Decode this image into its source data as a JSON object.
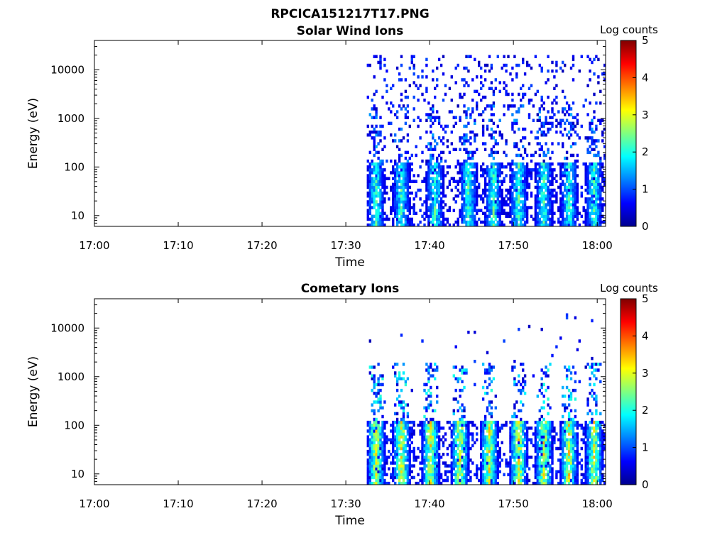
{
  "figure_title": "RPCICA151217T17.PNG",
  "colormap": [
    "#00008f",
    "#0000ff",
    "#0080ff",
    "#00ffff",
    "#80ff80",
    "#ffff00",
    "#ff8000",
    "#ff0000",
    "#800000"
  ],
  "chart_data": [
    {
      "type": "heatmap",
      "title": "Solar Wind Ions",
      "xlabel": "Time",
      "ylabel": "Energy (eV)",
      "x_ticks": [
        "17:00",
        "17:10",
        "17:20",
        "17:30",
        "17:40",
        "17:50",
        "18:00"
      ],
      "x_tick_values_min": [
        0,
        10,
        20,
        30,
        40,
        50,
        60
      ],
      "xlim_min": [
        0,
        61
      ],
      "y_scale": "log",
      "y_ticks": [
        "10",
        "100",
        "1000",
        "10000"
      ],
      "y_tick_values": [
        10,
        100,
        1000,
        10000
      ],
      "ylim": [
        6,
        40000
      ],
      "colorbar": {
        "label": "Log counts",
        "ticks": [
          "0",
          "1",
          "2",
          "3",
          "4",
          "5"
        ],
        "range": [
          0,
          5
        ]
      },
      "data_start_min": 32.5,
      "data_end_min": 61,
      "low_energy_bursts_min": [
        33.5,
        36.5,
        40.5,
        44.5,
        47.5,
        50.5,
        53.5,
        56.5,
        59.5
      ],
      "peak_log_counts": 2.6,
      "sparse_high_energy": true
    },
    {
      "type": "heatmap",
      "title": "Cometary Ions",
      "xlabel": "Time",
      "ylabel": "Energy (eV)",
      "x_ticks": [
        "17:00",
        "17:10",
        "17:20",
        "17:30",
        "17:40",
        "17:50",
        "18:00"
      ],
      "x_tick_values_min": [
        0,
        10,
        20,
        30,
        40,
        50,
        60
      ],
      "xlim_min": [
        0,
        61
      ],
      "y_scale": "log",
      "y_ticks": [
        "10",
        "100",
        "1000",
        "10000"
      ],
      "y_tick_values": [
        10,
        100,
        1000,
        10000
      ],
      "ylim": [
        6,
        40000
      ],
      "colorbar": {
        "label": "Log counts",
        "ticks": [
          "0",
          "1",
          "2",
          "3",
          "4",
          "5"
        ],
        "range": [
          0,
          5
        ]
      },
      "data_start_min": 32.5,
      "data_end_min": 61,
      "low_energy_bursts_min": [
        33.5,
        36.5,
        40,
        43.5,
        47,
        50.5,
        53.5,
        56.5,
        59.5
      ],
      "peak_log_counts": 3.6,
      "sparse_high_energy": true
    }
  ]
}
